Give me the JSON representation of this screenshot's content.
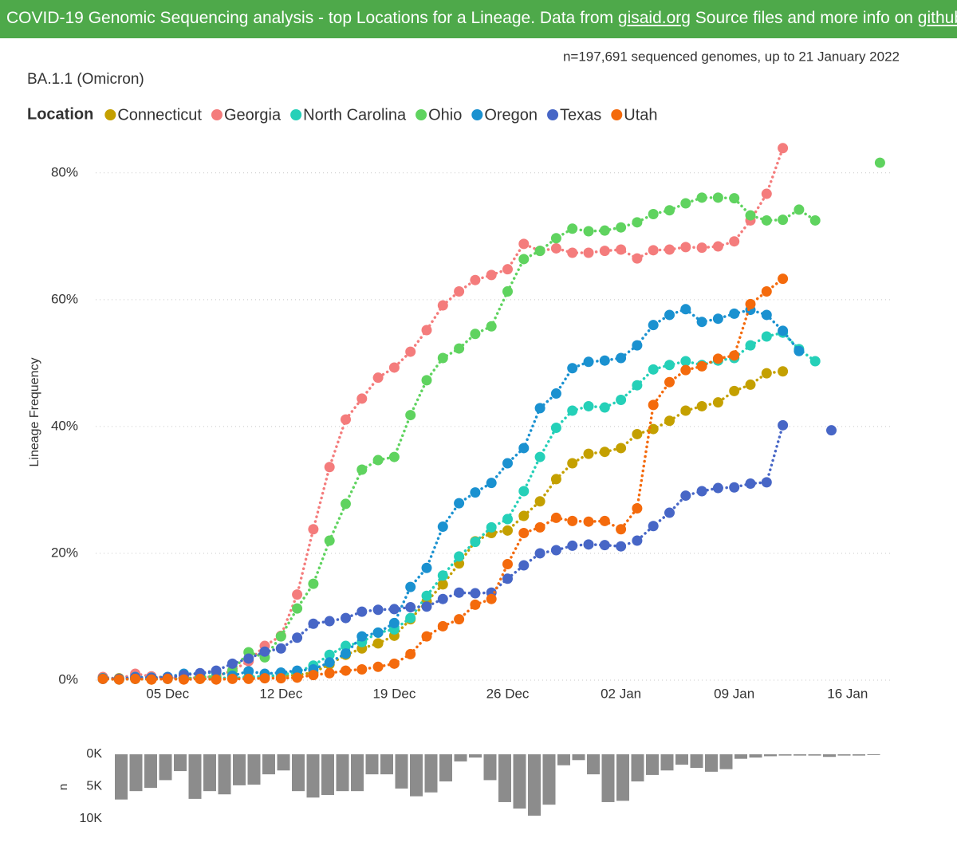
{
  "header": {
    "prefix": "COVID-19 Genomic Sequencing analysis - top Locations for a Lineage. Data from ",
    "link1": "gisaid.org",
    "middle": " Source files and more info on ",
    "link2": "github",
    "suffix": "."
  },
  "chart_data": [
    {
      "type": "line",
      "title": "BA.1.1 (Omicron)",
      "subtitle": "n=197,691 sequenced genomes, up to 21 January 2022",
      "y_label": "Lineage Frequency",
      "legend_title": "Location",
      "legend": "top",
      "grid": true,
      "ylim": [
        0,
        84
      ],
      "yticks": [
        {
          "value": 0,
          "label": "0%"
        },
        {
          "value": 20,
          "label": "20%"
        },
        {
          "value": 40,
          "label": "40%"
        },
        {
          "value": 60,
          "label": "60%"
        },
        {
          "value": 80,
          "label": "80%"
        }
      ],
      "categories": [
        null,
        null,
        null,
        null,
        "05 Dec",
        null,
        null,
        null,
        null,
        null,
        null,
        "12 Dec",
        null,
        null,
        null,
        null,
        null,
        null,
        "19 Dec",
        null,
        null,
        null,
        null,
        null,
        null,
        "26 Dec",
        null,
        null,
        null,
        null,
        null,
        null,
        "02 Jan",
        null,
        null,
        null,
        null,
        null,
        null,
        "09 Jan",
        null,
        null,
        null,
        null,
        null,
        null,
        "16 Jan",
        null,
        null
      ],
      "series": [
        {
          "name": "Connecticut",
          "color": "#c4a000",
          "values": [
            0.2,
            0.3,
            0.2,
            0.1,
            0.3,
            0.2,
            0.2,
            0.3,
            0.3,
            0.4,
            0.5,
            0.6,
            0.8,
            1.2,
            2.5,
            4.0,
            5.0,
            5.8,
            7.0,
            9.6,
            12.4,
            15.1,
            18.4,
            21.9,
            23.2,
            23.6,
            25.9,
            28.2,
            31.7,
            34.2,
            35.7,
            36.0,
            36.6,
            38.8,
            39.6,
            40.9,
            42.5,
            43.2,
            43.8,
            45.6,
            46.6,
            48.4,
            48.7,
            null,
            null,
            null,
            null,
            null,
            null
          ]
        },
        {
          "name": "Georgia",
          "color": "#f47c7c",
          "values": [
            0.5,
            0.2,
            1.0,
            0.6,
            0.4,
            0.3,
            0.4,
            0.6,
            1.5,
            3.0,
            5.4,
            7.0,
            13.5,
            23.8,
            33.6,
            41.1,
            44.4,
            47.7,
            49.3,
            51.8,
            55.2,
            59.1,
            61.3,
            63.1,
            63.9,
            64.8,
            68.8,
            67.7,
            68.1,
            67.4,
            67.4,
            67.7,
            67.9,
            66.5,
            67.8,
            67.9,
            68.3,
            68.2,
            68.4,
            69.2,
            72.5,
            76.7,
            83.9,
            null,
            null,
            null,
            null,
            null,
            null
          ]
        },
        {
          "name": "North Carolina",
          "color": "#25d0b8",
          "values": [
            0.2,
            0.1,
            0.2,
            0.3,
            0.2,
            0.2,
            0.3,
            0.4,
            0.3,
            0.5,
            0.6,
            0.8,
            1.3,
            2.3,
            4.0,
            5.4,
            6.0,
            7.5,
            8.0,
            9.8,
            13.3,
            16.5,
            19.5,
            21.8,
            24.1,
            25.4,
            29.8,
            35.2,
            39.8,
            42.5,
            43.2,
            43.0,
            44.2,
            46.5,
            49.0,
            49.7,
            50.3,
            49.7,
            50.4,
            50.8,
            52.8,
            54.2,
            54.8,
            52.2,
            50.3,
            null,
            null,
            null,
            null
          ]
        },
        {
          "name": "Ohio",
          "color": "#5fd35f",
          "values": [
            0.3,
            0.2,
            0.3,
            0.2,
            0.3,
            0.2,
            0.5,
            0.6,
            1.5,
            4.4,
            3.6,
            6.9,
            11.3,
            15.2,
            22.0,
            27.8,
            33.2,
            34.7,
            35.2,
            41.8,
            47.3,
            50.8,
            52.3,
            54.6,
            55.8,
            61.3,
            66.4,
            67.7,
            69.7,
            71.2,
            70.8,
            70.9,
            71.4,
            72.2,
            73.5,
            74.1,
            75.2,
            76.1,
            76.1,
            76.0,
            73.3,
            72.5,
            72.6,
            74.2,
            72.5,
            null,
            null,
            null,
            81.6
          ]
        },
        {
          "name": "Oregon",
          "color": "#1a91d0",
          "values": [
            0.3,
            0.2,
            0.5,
            0.4,
            0.5,
            1.0,
            1.0,
            1.3,
            0.7,
            1.4,
            1.0,
            1.2,
            1.5,
            1.7,
            2.8,
            4.2,
            6.9,
            7.5,
            9.0,
            14.7,
            17.7,
            24.2,
            27.9,
            29.6,
            31.1,
            34.2,
            36.6,
            42.9,
            45.2,
            49.2,
            50.2,
            50.4,
            50.8,
            52.8,
            56.0,
            57.6,
            58.5,
            56.5,
            57.0,
            57.8,
            58.4,
            57.6,
            55.1,
            51.9,
            null,
            null,
            null,
            null,
            null
          ]
        },
        {
          "name": "Texas",
          "color": "#4766c6",
          "values": [
            0.2,
            0.2,
            0.4,
            0.3,
            0.4,
            0.8,
            1.1,
            1.5,
            2.6,
            3.4,
            4.5,
            5.0,
            6.7,
            8.9,
            9.3,
            9.8,
            10.8,
            11.1,
            11.2,
            11.5,
            11.6,
            12.8,
            13.8,
            13.7,
            13.8,
            16.0,
            18.1,
            20.0,
            20.5,
            21.2,
            21.4,
            21.3,
            21.1,
            22.0,
            24.3,
            26.4,
            29.1,
            29.8,
            30.3,
            30.4,
            31.0,
            31.2,
            40.2,
            null,
            null,
            39.4,
            null,
            null,
            null
          ]
        },
        {
          "name": "Utah",
          "color": "#f46a0c",
          "values": [
            0.2,
            0.1,
            0.2,
            0.1,
            0.2,
            0.1,
            0.2,
            0.1,
            0.2,
            0.2,
            0.3,
            0.3,
            0.4,
            0.8,
            1.1,
            1.5,
            1.7,
            2.1,
            2.6,
            4.1,
            6.9,
            8.5,
            9.6,
            11.9,
            12.8,
            18.3,
            23.2,
            24.1,
            25.6,
            25.1,
            25.0,
            25.1,
            23.8,
            27.1,
            43.4,
            47.0,
            48.9,
            49.5,
            50.7,
            51.2,
            59.3,
            61.3,
            63.3,
            null,
            null,
            null,
            null,
            null,
            null
          ]
        }
      ]
    },
    {
      "type": "bar",
      "y_label": "n",
      "color": "#8c8c8c",
      "yreversed": true,
      "grid": false,
      "ylim": [
        0,
        10000
      ],
      "yticks": [
        {
          "value": 0,
          "label": "0K"
        },
        {
          "value": 5000,
          "label": "5K"
        },
        {
          "value": 10000,
          "label": "10K"
        }
      ],
      "categories": [
        null,
        null,
        null,
        null,
        null,
        null,
        null,
        null,
        null,
        null,
        null,
        null,
        null,
        null,
        null,
        null,
        null,
        null,
        null,
        null,
        null,
        null,
        null,
        null,
        null,
        null,
        null,
        null,
        null,
        null,
        null,
        null,
        null,
        null,
        null,
        null,
        null,
        null,
        null,
        null,
        null,
        null,
        null,
        null,
        null,
        null,
        null,
        null,
        null,
        null,
        null,
        null
      ],
      "values": [
        7000,
        5700,
        5200,
        4000,
        2600,
        6900,
        5700,
        6200,
        4800,
        4700,
        3100,
        2500,
        5700,
        6700,
        6300,
        5700,
        5700,
        3100,
        3100,
        5300,
        6500,
        5900,
        4200,
        1100,
        500,
        4000,
        7400,
        8400,
        9500,
        7800,
        1700,
        900,
        3100,
        7400,
        7200,
        4200,
        3200,
        2500,
        1600,
        2100,
        2700,
        2300,
        700,
        500,
        300,
        200,
        200,
        200,
        400,
        200,
        200,
        100
      ]
    }
  ]
}
